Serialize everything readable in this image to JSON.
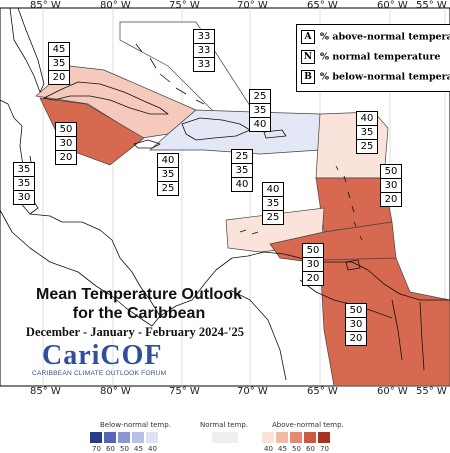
{
  "lon_ticks": [
    "85° W",
    "80° W",
    "75° W",
    "70° W",
    "65° W",
    "60° W",
    "55° W"
  ],
  "legend": {
    "a_key": "A",
    "a_text": "% above-normal temperature",
    "n_key": "N",
    "n_text": "% normal temperature",
    "b_key": "B",
    "b_text": "% below-normal temperature"
  },
  "title": {
    "line1": "Mean Temperature Outlook",
    "line2": "for the Caribbean",
    "line3": "December - January - February 2024-'25"
  },
  "logo": {
    "name": "CariCOF",
    "subtitle": "CARIBBEAN CLIMATE OUTLOOK FORUM"
  },
  "regions": [
    {
      "id": "cuba",
      "above": "45",
      "normal": "35",
      "below": "20",
      "fill": "#f5c9bb"
    },
    {
      "id": "bahamas",
      "above": "33",
      "normal": "33",
      "below": "33",
      "fill": "#ffffff"
    },
    {
      "id": "cayman",
      "above": "50",
      "normal": "30",
      "below": "20",
      "fill": "#d6694f"
    },
    {
      "id": "belize",
      "above": "35",
      "normal": "35",
      "below": "30",
      "fill": "#ffffff"
    },
    {
      "id": "jamaica-sw",
      "above": "40",
      "normal": "35",
      "below": "25",
      "fill": "#ffffff"
    },
    {
      "id": "hispaniola-north",
      "above": "25",
      "normal": "35",
      "below": "40",
      "fill": "#e4e8f6"
    },
    {
      "id": "hispaniola-south",
      "above": "25",
      "normal": "35",
      "below": "40",
      "fill": "#e4e8f6"
    },
    {
      "id": "leeward",
      "above": "40",
      "normal": "35",
      "below": "25",
      "fill": "#fae3da"
    },
    {
      "id": "windward",
      "above": "50",
      "normal": "30",
      "below": "20",
      "fill": "#d6694f"
    },
    {
      "id": "abc-islands",
      "above": "40",
      "normal": "35",
      "below": "25",
      "fill": "#fae3da"
    },
    {
      "id": "trinidad",
      "above": "50",
      "normal": "30",
      "below": "20",
      "fill": "#d6694f"
    },
    {
      "id": "guianas",
      "above": "50",
      "normal": "30",
      "below": "20",
      "fill": "#d6694f"
    }
  ],
  "colorbar": {
    "below_label": "Below-normal temp.",
    "normal_label": "Normal temp.",
    "above_label": "Above-normal temp.",
    "below_ticks": [
      "70",
      "60",
      "50",
      "45",
      "40"
    ],
    "above_ticks": [
      "40",
      "45",
      "50",
      "60",
      "70"
    ],
    "below_colors": [
      "#2c3a8c",
      "#5566b8",
      "#8a97d2",
      "#b8c0e6",
      "#dde1f4"
    ],
    "normal_color": "#eeeeee",
    "above_colors": [
      "#fbe2d8",
      "#f4b9a5",
      "#e58a70",
      "#cc5a3f",
      "#a8341f"
    ]
  }
}
